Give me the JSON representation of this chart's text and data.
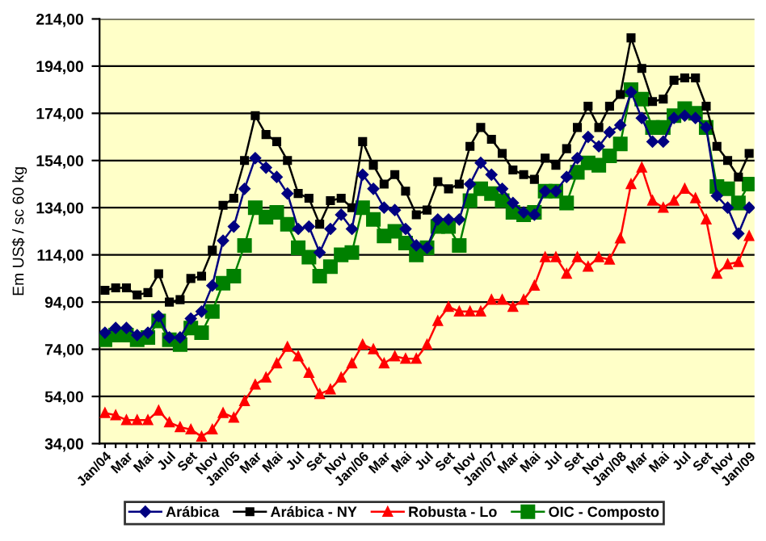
{
  "chart_data": {
    "type": "line",
    "ylabel": "Em US$ / sc 60 kg",
    "categories": [
      "Jan/04",
      null,
      "Mar",
      null,
      "Mai",
      null,
      "Jul",
      null,
      "Set",
      null,
      "Nov",
      null,
      "Jan/05",
      null,
      "Mar",
      null,
      "Mai",
      null,
      "Jul",
      null,
      "Set",
      null,
      "Nov",
      null,
      "Jan/06",
      null,
      "Mar",
      null,
      "Mai",
      null,
      "Jul",
      null,
      "Set",
      null,
      "Nov",
      null,
      "Jan/07",
      null,
      "Mar",
      null,
      "Mai",
      null,
      "Jul",
      null,
      "Set",
      null,
      "Nov",
      null,
      "Jan/08",
      null,
      "Mar",
      null,
      "Mai",
      null,
      "Jul",
      null,
      "Set",
      null,
      "Nov",
      null,
      "Jan/09"
    ],
    "series": [
      {
        "name": "Arábica",
        "color": "#000080",
        "marker": "diamond",
        "values": [
          81,
          83,
          83,
          80,
          81,
          88,
          79,
          79,
          87,
          90,
          101,
          120,
          126,
          142,
          155,
          151,
          147,
          140,
          125,
          126,
          115,
          125,
          131,
          125,
          148,
          142,
          134,
          133,
          125,
          118,
          117,
          129,
          129,
          129,
          144,
          153,
          148,
          142,
          136,
          132,
          131,
          141,
          141,
          147,
          155,
          164,
          160,
          166,
          169,
          183,
          172,
          162,
          162,
          172,
          173,
          172,
          168,
          139,
          134,
          123,
          134
        ]
      },
      {
        "name": "Arábica - NY",
        "color": "#000000",
        "marker": "square",
        "values": [
          99,
          100,
          100,
          97,
          98,
          106,
          94,
          95,
          104,
          105,
          116,
          135,
          138,
          154,
          173,
          165,
          162,
          154,
          140,
          138,
          127,
          137,
          138,
          134,
          162,
          152,
          144,
          148,
          141,
          131,
          133,
          145,
          142,
          144,
          160,
          168,
          163,
          157,
          150,
          148,
          146,
          155,
          152,
          159,
          168,
          177,
          168,
          177,
          182,
          206,
          193,
          179,
          180,
          188,
          189,
          189,
          177,
          160,
          154,
          147,
          157
        ]
      },
      {
        "name": "Robusta - Lo",
        "color": "#ff0000",
        "marker": "triangle",
        "values": [
          47,
          46,
          44,
          44,
          44,
          48,
          43,
          41,
          40,
          37,
          40,
          47,
          45,
          52,
          59,
          62,
          68,
          75,
          71,
          64,
          55,
          57,
          62,
          68,
          76,
          74,
          68,
          71,
          70,
          70,
          76,
          86,
          92,
          90,
          90,
          90,
          95,
          95,
          92,
          95,
          101,
          113,
          113,
          106,
          113,
          109,
          113,
          112,
          121,
          144,
          151,
          137,
          134,
          137,
          142,
          138,
          129,
          106,
          110,
          111,
          122
        ]
      },
      {
        "name": "OIC - Composto",
        "color": "#008000",
        "marker": "square",
        "values": [
          78,
          80,
          80,
          78,
          79,
          86,
          78,
          76,
          83,
          81,
          90,
          102,
          105,
          118,
          134,
          130,
          132,
          127,
          117,
          113,
          105,
          109,
          114,
          115,
          134,
          129,
          122,
          124,
          119,
          114,
          117,
          126,
          126,
          118,
          137,
          142,
          140,
          137,
          132,
          131,
          132,
          141,
          141,
          136,
          149,
          153,
          152,
          156,
          161,
          184,
          180,
          168,
          168,
          173,
          176,
          174,
          168,
          143,
          142,
          136,
          144
        ]
      }
    ],
    "ylim": [
      34,
      214
    ],
    "yticks": [
      {
        "value": 34,
        "label": "34,00"
      },
      {
        "value": 54,
        "label": "54,00"
      },
      {
        "value": 74,
        "label": "74,00"
      },
      {
        "value": 94,
        "label": "94,00"
      },
      {
        "value": 114,
        "label": "114,00"
      },
      {
        "value": 134,
        "label": "134,00"
      },
      {
        "value": 154,
        "label": "154,00"
      },
      {
        "value": 174,
        "label": "174,00"
      },
      {
        "value": 194,
        "label": "194,00"
      },
      {
        "value": 214,
        "label": "214,00"
      }
    ],
    "grid": "y",
    "legend": "bottom",
    "line_style": "solid"
  }
}
